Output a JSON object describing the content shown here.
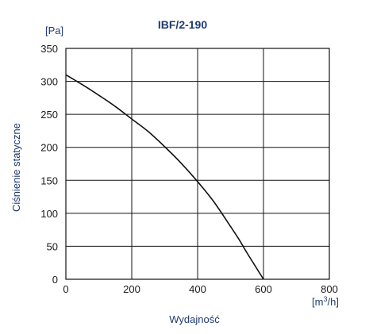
{
  "chart_data": {
    "type": "line",
    "title": "IBF/2-190",
    "xlabel": "Wydajność",
    "ylabel": "Ciśnienie statyczne",
    "x_unit_prefix": "[m",
    "x_unit_sup": "3",
    "x_unit_suffix": "/h]",
    "y_unit": "[Pa]",
    "xlim": [
      0,
      800
    ],
    "ylim": [
      0,
      350
    ],
    "x_ticks": [
      0,
      200,
      400,
      600,
      800
    ],
    "y_ticks": [
      0,
      50,
      100,
      150,
      200,
      250,
      300,
      350
    ],
    "grid": true,
    "series": [
      {
        "x": [
          0,
          50,
          100,
          150,
          200,
          250,
          300,
          350,
          400,
          450,
          500,
          525,
          550,
          575,
          600
        ],
        "y": [
          310,
          295,
          279,
          262,
          243,
          224,
          201,
          176,
          148,
          117,
          80,
          61,
          40,
          20,
          0
        ]
      }
    ],
    "line_color": "#111111",
    "title_color": "#1f3a6e"
  }
}
